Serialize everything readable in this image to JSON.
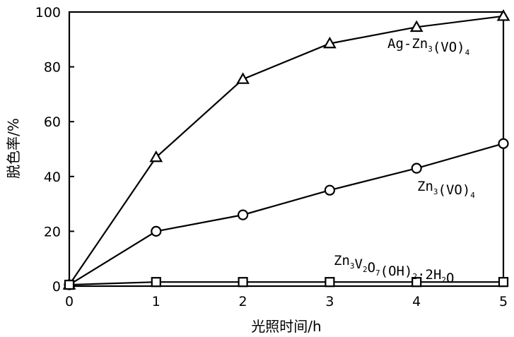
{
  "chart_data": {
    "type": "line",
    "x": [
      0,
      1,
      2,
      3,
      4,
      5
    ],
    "xlim": [
      0,
      5
    ],
    "ylim": [
      0,
      100
    ],
    "xticks": [
      "0",
      "1",
      "2",
      "3",
      "4",
      "5"
    ],
    "yticks": [
      "0",
      "20",
      "40",
      "60",
      "80",
      "100"
    ],
    "xlabel": "光照时间/h",
    "ylabel": "脱色率/%",
    "grid": false,
    "series": [
      {
        "name": "Ag-Zn3(VO)4",
        "marker": "triangle",
        "values": [
          0.5,
          47,
          75.5,
          88.5,
          94.5,
          98.5
        ]
      },
      {
        "name": "Zn3(VO)4",
        "marker": "circle",
        "values": [
          0.5,
          20,
          26,
          35,
          43,
          52
        ]
      },
      {
        "name": "Zn3V2O7(OH)2·2H2O",
        "marker": "square",
        "values": [
          0.5,
          1.5,
          1.5,
          1.5,
          1.5,
          1.5
        ]
      }
    ],
    "colors": {
      "line": "#000000",
      "marker_fill": "#ffffff"
    }
  }
}
